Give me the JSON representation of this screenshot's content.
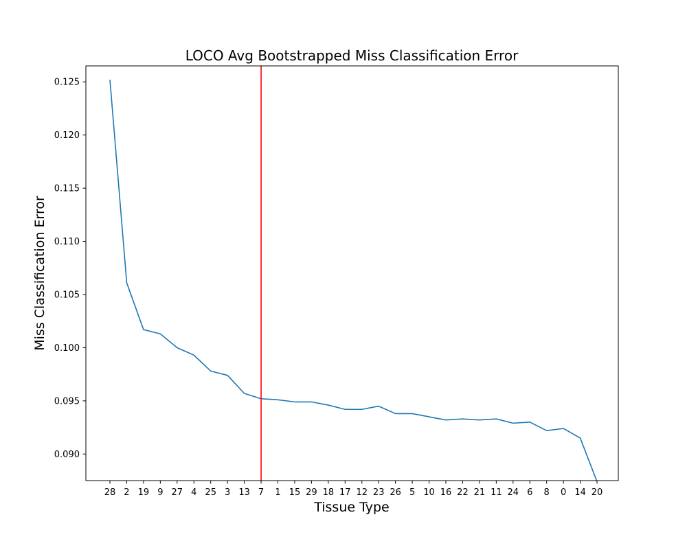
{
  "chart_data": {
    "type": "line",
    "title": "LOCO Avg Bootstrapped Miss Classification Error",
    "xlabel": "Tissue Type",
    "ylabel": "Miss Classification Error",
    "categories": [
      "28",
      "2",
      "19",
      "9",
      "27",
      "4",
      "25",
      "3",
      "13",
      "7",
      "1",
      "15",
      "29",
      "18",
      "17",
      "12",
      "23",
      "26",
      "5",
      "10",
      "16",
      "22",
      "21",
      "11",
      "24",
      "6",
      "8",
      "0",
      "14",
      "20"
    ],
    "series": [
      {
        "values": [
          0.1252,
          0.1061,
          0.1017,
          0.1013,
          0.1,
          0.0993,
          0.0978,
          0.0974,
          0.0957,
          0.0952,
          0.0951,
          0.0949,
          0.0949,
          0.0946,
          0.0942,
          0.0942,
          0.0945,
          0.0938,
          0.0938,
          0.0935,
          0.0932,
          0.0933,
          0.0932,
          0.0933,
          0.0929,
          0.093,
          0.0922,
          0.0924,
          0.0915,
          0.0874
        ],
        "color": "#1f77b4"
      }
    ],
    "ylim": [
      0.0875,
      0.1265
    ],
    "yticks": [
      0.09,
      0.095,
      0.1,
      0.105,
      0.11,
      0.115,
      0.12,
      0.125
    ],
    "vline": {
      "category": "7",
      "color": "#ff0000"
    },
    "grid": false,
    "legend": "none"
  }
}
